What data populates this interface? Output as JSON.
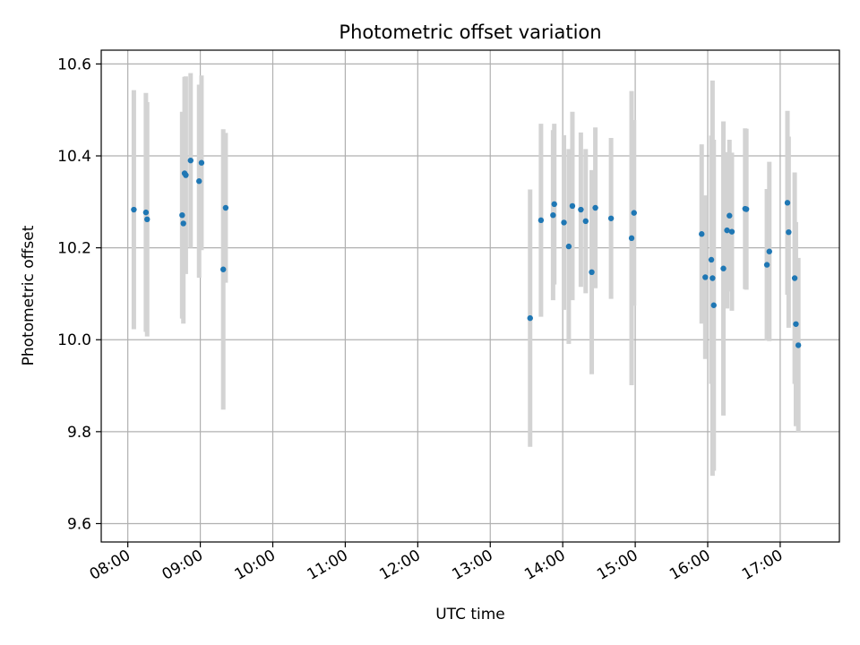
{
  "chart_data": {
    "type": "scatter",
    "title": "Photometric offset variation",
    "xlabel": "UTC time",
    "ylabel": "Photometric offset",
    "x_axis": "time",
    "xlim": [
      "07:38",
      "17:49"
    ],
    "ylim": [
      9.56,
      10.63
    ],
    "xticks": [
      "08:00",
      "09:00",
      "10:00",
      "11:00",
      "12:00",
      "13:00",
      "14:00",
      "15:00",
      "16:00",
      "17:00"
    ],
    "yticks": [
      "9.6",
      "9.8",
      "10.0",
      "10.2",
      "10.4",
      "10.6"
    ],
    "grid": true,
    "legend": "none",
    "colors": {
      "marker": "#1f77b4",
      "errorbar": "#d3d3d3",
      "grid": "#b0b0b0"
    },
    "series": [
      {
        "x": [
          "08:05",
          "08:15",
          "08:16",
          "08:45",
          "08:46",
          "08:47",
          "08:48",
          "08:52",
          "08:59",
          "09:01",
          "09:19",
          "09:21",
          "13:33",
          "13:42",
          "13:52",
          "13:53",
          "14:01",
          "14:05",
          "14:08",
          "14:15",
          "14:19",
          "14:24",
          "14:27",
          "14:40",
          "14:57",
          "14:59",
          "15:55",
          "15:58",
          "16:03",
          "16:04",
          "16:05",
          "16:13",
          "16:16",
          "16:18",
          "16:20",
          "16:31",
          "16:32",
          "16:49",
          "16:51",
          "17:06",
          "17:07",
          "17:12",
          "17:13",
          "17:15"
        ],
        "y": [
          10.283,
          10.277,
          10.262,
          10.271,
          10.253,
          10.362,
          10.358,
          10.39,
          10.345,
          10.385,
          10.153,
          10.287,
          10.047,
          10.26,
          10.271,
          10.295,
          10.255,
          10.203,
          10.291,
          10.283,
          10.258,
          10.147,
          10.287,
          10.264,
          10.221,
          10.276,
          10.23,
          10.136,
          10.174,
          10.134,
          10.075,
          10.155,
          10.238,
          10.27,
          10.235,
          10.285,
          10.284,
          10.163,
          10.192,
          10.298,
          10.234,
          10.134,
          10.034,
          9.988
        ],
        "err": [
          0.26,
          0.26,
          0.255,
          0.225,
          0.218,
          0.21,
          0.215,
          0.19,
          0.21,
          0.19,
          0.305,
          0.163,
          0.28,
          0.21,
          0.185,
          0.175,
          0.19,
          0.212,
          0.205,
          0.168,
          0.157,
          0.222,
          0.175,
          0.175,
          0.32,
          0.202,
          0.195,
          0.178,
          0.27,
          0.43,
          0.36,
          0.32,
          0.17,
          0.165,
          0.172,
          0.175,
          0.175,
          0.165,
          0.195,
          0.2,
          0.208,
          0.23,
          0.222,
          0.19
        ]
      }
    ]
  }
}
